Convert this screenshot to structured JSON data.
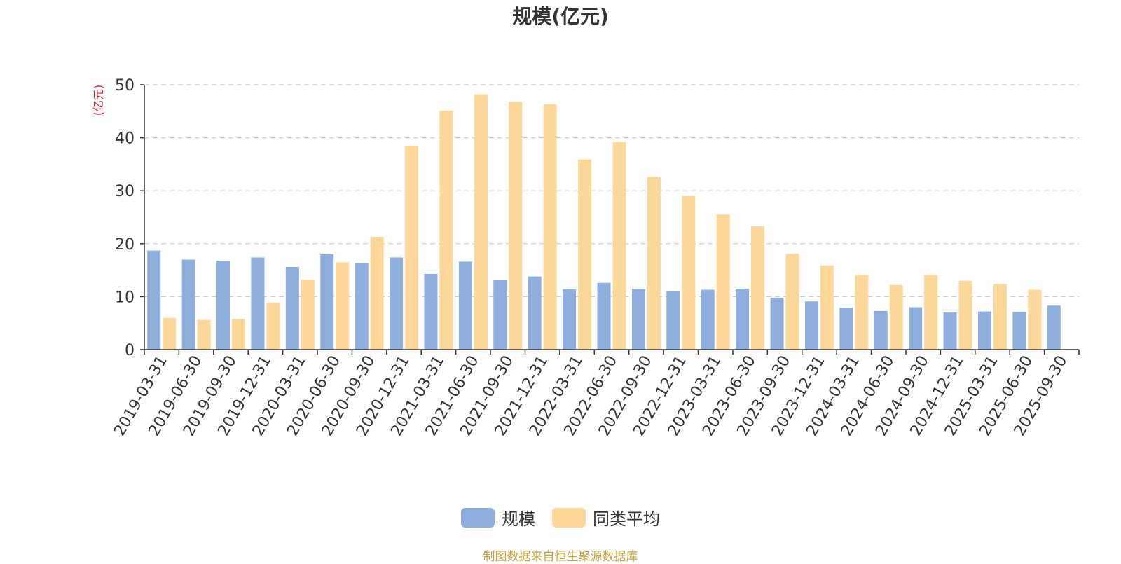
{
  "chart_data": {
    "type": "bar",
    "title": "规模(亿元)",
    "ylabel": "(亿元)",
    "xlabel": "",
    "ylim": [
      0,
      50
    ],
    "yticks": [
      0,
      10,
      20,
      30,
      40,
      50
    ],
    "grid": true,
    "legend_position": "bottom",
    "categories": [
      "2019-03-31",
      "2019-06-30",
      "2019-09-30",
      "2019-12-31",
      "2020-03-31",
      "2020-06-30",
      "2020-09-30",
      "2020-12-31",
      "2021-03-31",
      "2021-06-30",
      "2021-09-30",
      "2021-12-31",
      "2022-03-31",
      "2022-06-30",
      "2022-09-30",
      "2022-12-31",
      "2023-03-31",
      "2023-06-30",
      "2023-09-30",
      "2023-12-31",
      "2024-03-31",
      "2024-06-30",
      "2024-09-30",
      "2024-12-31",
      "2025-03-31",
      "2025-06-30",
      "2025-09-30"
    ],
    "series": [
      {
        "name": "规模",
        "color": "#8eaedd",
        "values": [
          18.7,
          17.0,
          16.8,
          17.4,
          15.6,
          18.0,
          16.3,
          17.4,
          14.3,
          16.6,
          13.1,
          13.8,
          11.4,
          12.6,
          11.5,
          11.0,
          11.3,
          11.5,
          9.8,
          9.1,
          7.9,
          7.3,
          8.0,
          7.0,
          7.2,
          7.1,
          8.3
        ]
      },
      {
        "name": "同类平均",
        "color": "#fdd89a",
        "values": [
          6.0,
          5.6,
          5.8,
          8.9,
          13.2,
          16.5,
          21.3,
          38.5,
          45.1,
          48.2,
          46.8,
          46.3,
          35.9,
          39.2,
          32.6,
          29.0,
          25.5,
          23.3,
          18.1,
          15.9,
          14.1,
          12.2,
          14.1,
          13.0,
          12.4,
          11.3,
          null
        ]
      }
    ]
  },
  "footer": {
    "source": "制图数据来自恒生聚源数据库"
  }
}
